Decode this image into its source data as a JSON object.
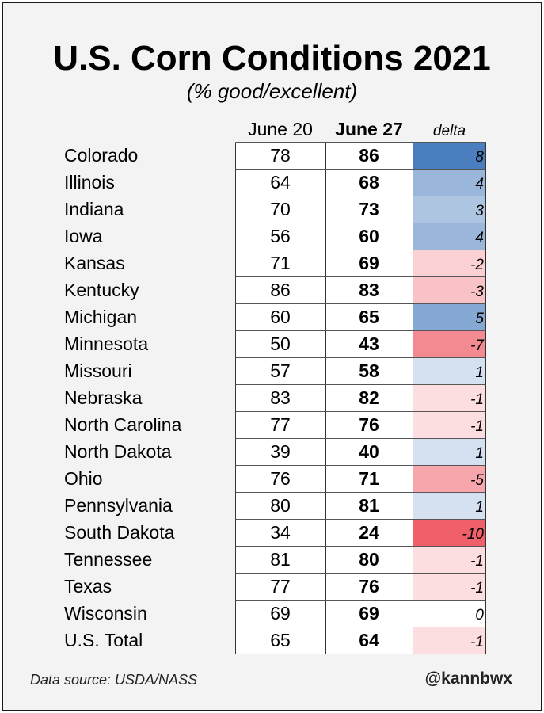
{
  "title": "U.S. Corn Conditions 2021",
  "subtitle": "(% good/excellent)",
  "footer": {
    "source": "Data source: USDA/NASS",
    "handle": "@kannbwx"
  },
  "colors": {
    "positive_max": "#4a7ebf",
    "negative_max": "#f0606a",
    "neutral": "#ffffff"
  },
  "chart_data": {
    "type": "table",
    "title": "U.S. Corn Conditions 2021",
    "subtitle": "(% good/excellent)",
    "columns": [
      "June 20",
      "June 27",
      "delta"
    ],
    "rows": [
      {
        "state": "Colorado",
        "june20": 78,
        "june27": 86,
        "delta": 8
      },
      {
        "state": "Illinois",
        "june20": 64,
        "june27": 68,
        "delta": 4
      },
      {
        "state": "Indiana",
        "june20": 70,
        "june27": 73,
        "delta": 3
      },
      {
        "state": "Iowa",
        "june20": 56,
        "june27": 60,
        "delta": 4
      },
      {
        "state": "Kansas",
        "june20": 71,
        "june27": 69,
        "delta": -2
      },
      {
        "state": "Kentucky",
        "june20": 86,
        "june27": 83,
        "delta": -3
      },
      {
        "state": "Michigan",
        "june20": 60,
        "june27": 65,
        "delta": 5
      },
      {
        "state": "Minnesota",
        "june20": 50,
        "june27": 43,
        "delta": -7
      },
      {
        "state": "Missouri",
        "june20": 57,
        "june27": 58,
        "delta": 1
      },
      {
        "state": "Nebraska",
        "june20": 83,
        "june27": 82,
        "delta": -1
      },
      {
        "state": "North Carolina",
        "june20": 77,
        "june27": 76,
        "delta": -1
      },
      {
        "state": "North Dakota",
        "june20": 39,
        "june27": 40,
        "delta": 1
      },
      {
        "state": "Ohio",
        "june20": 76,
        "june27": 71,
        "delta": -5
      },
      {
        "state": "Pennsylvania",
        "june20": 80,
        "june27": 81,
        "delta": 1
      },
      {
        "state": "South Dakota",
        "june20": 34,
        "june27": 24,
        "delta": -10
      },
      {
        "state": "Tennessee",
        "june20": 81,
        "june27": 80,
        "delta": -1
      },
      {
        "state": "Texas",
        "june20": 77,
        "june27": 76,
        "delta": -1
      },
      {
        "state": "Wisconsin",
        "june20": 69,
        "june27": 69,
        "delta": 0
      },
      {
        "state": "U.S. Total",
        "june20": 65,
        "june27": 64,
        "delta": -1
      }
    ]
  }
}
